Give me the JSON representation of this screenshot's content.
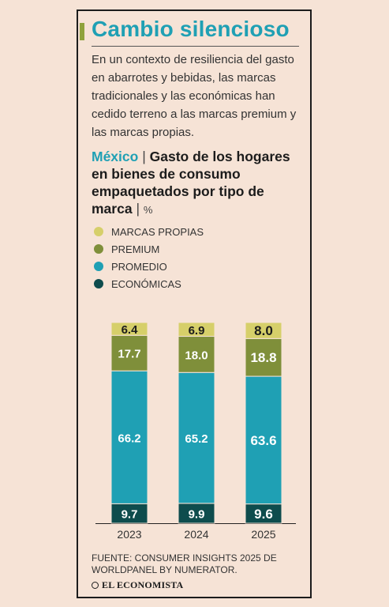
{
  "header": {
    "title": "Cambio silencioso",
    "intro": "En un contexto de resiliencia del gasto en abarrotes y bebidas, las marcas tradicionales y las económicas han cedido terreno a las marcas premium y las marcas propias."
  },
  "subtitle": {
    "country": "México",
    "separator": "|",
    "text": "Gasto de los hogares en bienes de consumo empaquetados por tipo de marca",
    "unit_sep": "|",
    "unit": "%"
  },
  "legend": [
    {
      "label": "MARCAS PROPIAS",
      "color": "#d6cf6a"
    },
    {
      "label": "PREMIUM",
      "color": "#7f8f3a"
    },
    {
      "label": "PROMEDIO",
      "color": "#1fa0b4"
    },
    {
      "label": "ECONÓMICAS",
      "color": "#0e4c4d"
    }
  ],
  "chart_data": {
    "type": "bar",
    "stacked": true,
    "categories": [
      "2023",
      "2024",
      "2025"
    ],
    "series": [
      {
        "name": "ECONÓMICAS",
        "values": [
          9.7,
          9.9,
          9.6
        ],
        "color": "#0e4c4d"
      },
      {
        "name": "PROMEDIO",
        "values": [
          66.2,
          65.2,
          63.6
        ],
        "color": "#1fa0b4"
      },
      {
        "name": "PREMIUM",
        "values": [
          17.7,
          18.0,
          18.8
        ],
        "color": "#7f8f3a"
      },
      {
        "name": "MARCAS PROPIAS",
        "values": [
          6.4,
          6.9,
          8.0
        ],
        "color": "#d6cf6a"
      }
    ],
    "ylim": [
      0,
      100
    ]
  },
  "footer": {
    "source": "FUENTE: CONSUMER INSIGHTS 2025 DE WORLDPANEL BY NUMERATOR.",
    "brand": "EL ECONOMISTA"
  }
}
